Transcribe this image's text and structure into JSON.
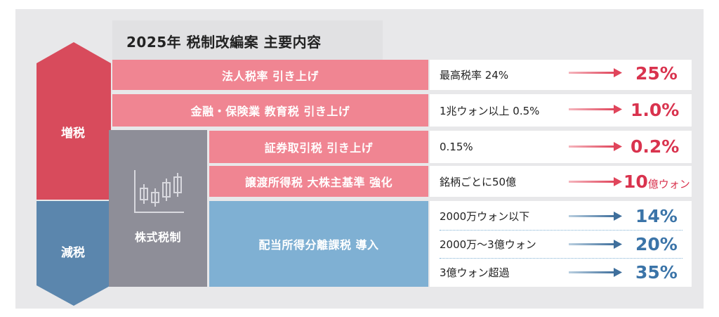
{
  "title": "2025年 税制改編案 主要内容",
  "side": {
    "increase_label": "増税",
    "decrease_label": "減税"
  },
  "stock_tax": {
    "label": "株式税制",
    "icon": "candlestick-chart-icon"
  },
  "items": [
    {
      "label": "法人税率 引き上げ",
      "current": "最高税率 24%",
      "new_value": "25%",
      "unit": ""
    },
    {
      "label": "金融・保険業 教育税 引き上げ",
      "current": "1兆ウォン以上 0.5%",
      "new_value": "1.0%",
      "unit": ""
    },
    {
      "label": "証券取引税 引き上げ",
      "current": "0.15%",
      "new_value": "0.2%",
      "unit": ""
    },
    {
      "label": "譲渡所得税 大株主基準 強化",
      "current": "銘柄ごとに50億",
      "new_value": "10",
      "unit": "億ウォン"
    }
  ],
  "dividend": {
    "label": "配当所得分離課税 導入",
    "tiers": [
      {
        "current": "2000万ウォン以下",
        "new_value": "14%"
      },
      {
        "current": "2000万〜3億ウォン",
        "new_value": "20%"
      },
      {
        "current": "3億ウォン超過",
        "new_value": "35%"
      }
    ]
  },
  "colors": {
    "increase_arrow": "#d84b5c",
    "decrease_arrow": "#5b86ad",
    "red_bar": "#f08592",
    "blue_bar": "#7fb0d3",
    "gray_column": "#8e8e98",
    "red_text": "#d9334e",
    "blue_text": "#3b74a8"
  }
}
